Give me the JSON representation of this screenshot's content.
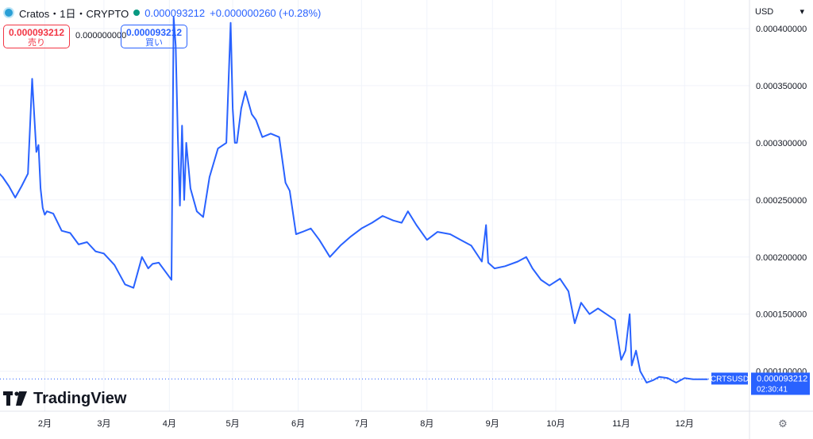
{
  "header": {
    "symbol": "Cratos・1日・CRYPTO",
    "last_price": "0.000093212",
    "change": "+0.000000260 (+0.28%)"
  },
  "order_panel": {
    "sell_price": "0.000093212",
    "sell_label": "売り",
    "spread": "0.000000000",
    "buy_price": "0.000093212",
    "buy_label": "買い"
  },
  "currency_select": "USD",
  "watermark": "TradingView",
  "icons": [
    "coin-icon",
    "live-dot-icon",
    "chevron-down-icon",
    "tradingview-logo-icon",
    "settings-gear-icon"
  ],
  "colors": {
    "line": "#2962ff",
    "sell": "#f23645",
    "buy": "#2962ff",
    "live": "#089981"
  },
  "chart_data": {
    "type": "line",
    "y_ticks": [
      "0.000100000",
      "0.000150000",
      "0.000200000",
      "0.000250000",
      "0.000300000",
      "0.000350000",
      "0.000400000"
    ],
    "x_ticks": [
      "2月",
      "3月",
      "4月",
      "5月",
      "6月",
      "7月",
      "8月",
      "9月",
      "10月",
      "11月",
      "12月"
    ],
    "ylim": [
      6.5e-05,
      0.000425
    ],
    "grid": true,
    "last_label": {
      "symbol": "CRTSUSD",
      "price": "0.000093212",
      "countdown": "02:30:41"
    },
    "series": [
      {
        "x": [
          "2023-01-09",
          "2023-01-12",
          "2023-01-15",
          "2023-01-18",
          "2023-01-21",
          "2023-01-24",
          "2023-01-26",
          "2023-01-28",
          "2023-01-29",
          "2023-01-30",
          "2023-01-31",
          "2023-02-01",
          "2023-02-02",
          "2023-02-05",
          "2023-02-09",
          "2023-02-13",
          "2023-02-17",
          "2023-02-21",
          "2023-02-25",
          "2023-03-01",
          "2023-03-06",
          "2023-03-11",
          "2023-03-15",
          "2023-03-19",
          "2023-03-22",
          "2023-03-24",
          "2023-03-27",
          "2023-03-31",
          "2023-04-02",
          "2023-04-03",
          "2023-04-04",
          "2023-04-05",
          "2023-04-06",
          "2023-04-07",
          "2023-04-08",
          "2023-04-09",
          "2023-04-11",
          "2023-04-14",
          "2023-04-17",
          "2023-04-20",
          "2023-04-24",
          "2023-04-28",
          "2023-04-30",
          "2023-05-01",
          "2023-05-02",
          "2023-05-03",
          "2023-05-05",
          "2023-05-07",
          "2023-05-10",
          "2023-05-12",
          "2023-05-15",
          "2023-05-19",
          "2023-05-23",
          "2023-05-26",
          "2023-05-28",
          "2023-05-31",
          "2023-06-03",
          "2023-06-07",
          "2023-06-11",
          "2023-06-16",
          "2023-06-21",
          "2023-06-26",
          "2023-07-01",
          "2023-07-06",
          "2023-07-11",
          "2023-07-16",
          "2023-07-20",
          "2023-07-23",
          "2023-07-27",
          "2023-08-01",
          "2023-08-06",
          "2023-08-12",
          "2023-08-17",
          "2023-08-22",
          "2023-08-27",
          "2023-08-29",
          "2023-08-30",
          "2023-09-02",
          "2023-09-07",
          "2023-09-13",
          "2023-09-17",
          "2023-09-20",
          "2023-09-24",
          "2023-09-28",
          "2023-10-03",
          "2023-10-07",
          "2023-10-10",
          "2023-10-13",
          "2023-10-17",
          "2023-10-21",
          "2023-10-25",
          "2023-10-29",
          "2023-11-01",
          "2023-11-03",
          "2023-11-05",
          "2023-11-06",
          "2023-11-08",
          "2023-11-10",
          "2023-11-13",
          "2023-11-16",
          "2023-11-19",
          "2023-11-23",
          "2023-11-27",
          "2023-12-01",
          "2023-12-05",
          "2023-12-09",
          "2023-12-12"
        ],
        "y": [
          0.000276,
          0.00027,
          0.000262,
          0.000252,
          0.000262,
          0.000273,
          0.000356,
          0.000292,
          0.000298,
          0.00026,
          0.000243,
          0.000237,
          0.00024,
          0.000238,
          0.000223,
          0.000221,
          0.000211,
          0.000213,
          0.000205,
          0.000203,
          0.000193,
          0.000176,
          0.000173,
          0.0002,
          0.00019,
          0.000194,
          0.000195,
          0.000185,
          0.00018,
          0.00041,
          0.000385,
          0.000305,
          0.000245,
          0.000315,
          0.00025,
          0.0003,
          0.00026,
          0.00024,
          0.000235,
          0.00027,
          0.000295,
          0.0003,
          0.000405,
          0.00033,
          0.0003,
          0.0003,
          0.00033,
          0.000345,
          0.000325,
          0.00032,
          0.000305,
          0.000308,
          0.000305,
          0.000265,
          0.000258,
          0.00022,
          0.000222,
          0.000225,
          0.000215,
          0.0002,
          0.00021,
          0.000218,
          0.000225,
          0.00023,
          0.000236,
          0.000232,
          0.00023,
          0.00024,
          0.000228,
          0.000215,
          0.000222,
          0.00022,
          0.000215,
          0.00021,
          0.000196,
          0.000228,
          0.000195,
          0.00019,
          0.000192,
          0.000196,
          0.0002,
          0.00019,
          0.00018,
          0.000175,
          0.000181,
          0.00017,
          0.000142,
          0.00016,
          0.00015,
          0.000155,
          0.00015,
          0.000145,
          0.00011,
          0.000118,
          0.00015,
          0.000105,
          0.000118,
          0.0001,
          9e-05,
          9.2e-05,
          9.5e-05,
          9.4e-05,
          9e-05,
          9.4e-05,
          9.3e-05,
          9.3e-05,
          9.3e-05
        ]
      }
    ]
  }
}
